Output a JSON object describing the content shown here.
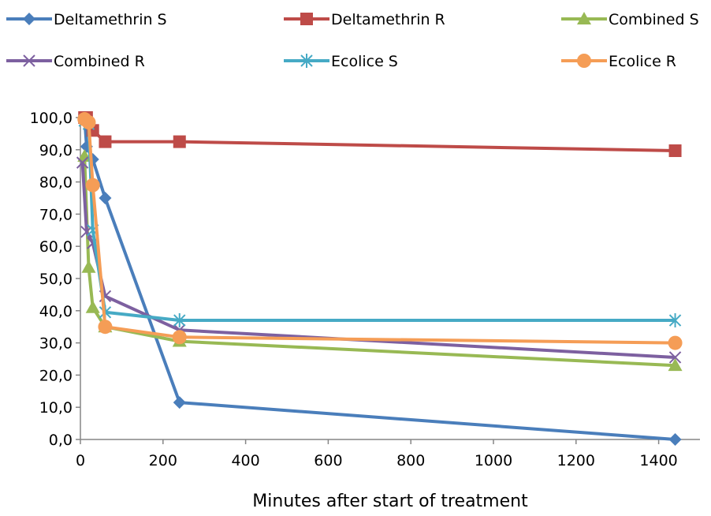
{
  "chart_data": {
    "type": "line",
    "title": "",
    "xlabel": "Minutes after start of treatment",
    "ylabel": "",
    "xlim": [
      0,
      1500
    ],
    "ylim": [
      0,
      100
    ],
    "x_ticks": [
      0,
      200,
      400,
      600,
      800,
      1000,
      1200,
      1400
    ],
    "x_tick_labels": [
      "0",
      "200",
      "400",
      "600",
      "800",
      "1000",
      "1200",
      "1400"
    ],
    "y_ticks": [
      0,
      10,
      20,
      30,
      40,
      50,
      60,
      70,
      80,
      90,
      100
    ],
    "y_tick_labels": [
      "0,0",
      "10,0",
      "20,0",
      "30,0",
      "40,0",
      "50,0",
      "60,0",
      "70,0",
      "80,0",
      "90,0",
      "100,0"
    ],
    "grid": false,
    "legend_position": "top",
    "series": [
      {
        "name": "Deltamethrin S",
        "color": "#4a7ebb",
        "marker": "diamond",
        "points": [
          [
            10,
            100.0
          ],
          [
            15,
            91.0
          ],
          [
            30,
            87.0
          ],
          [
            60,
            75.0
          ],
          [
            240,
            11.5
          ],
          [
            1440,
            0.0
          ]
        ]
      },
      {
        "name": "Deltamethrin R",
        "color": "#be4b48",
        "marker": "square",
        "points": [
          [
            10,
            100.0
          ],
          [
            15,
            100.0
          ],
          [
            30,
            96.0
          ],
          [
            60,
            92.5
          ],
          [
            240,
            92.5
          ],
          [
            1440,
            89.7
          ]
        ]
      },
      {
        "name": "Combined S",
        "color": "#98b954",
        "marker": "triangle",
        "points": [
          [
            10,
            88.0
          ],
          [
            20,
            53.5
          ],
          [
            30,
            41.0
          ],
          [
            60,
            35.0
          ],
          [
            240,
            30.5
          ],
          [
            1440,
            23.0
          ]
        ]
      },
      {
        "name": "Combined R",
        "color": "#7d60a0",
        "marker": "x",
        "points": [
          [
            5,
            86.0
          ],
          [
            15,
            64.5
          ],
          [
            30,
            61.0
          ],
          [
            60,
            44.5
          ],
          [
            240,
            34.0
          ],
          [
            1440,
            25.5
          ]
        ]
      },
      {
        "name": "Ecolice S",
        "color": "#46aac5",
        "marker": "star",
        "points": [
          [
            10,
            99.0
          ],
          [
            20,
            98.0
          ],
          [
            30,
            65.0
          ],
          [
            60,
            39.5
          ],
          [
            240,
            37.0
          ],
          [
            1440,
            37.0
          ]
        ]
      },
      {
        "name": "Ecolice R",
        "color": "#f59d56",
        "marker": "circle",
        "points": [
          [
            10,
            99.5
          ],
          [
            20,
            98.5
          ],
          [
            30,
            79.0
          ],
          [
            60,
            35.0
          ],
          [
            240,
            31.8
          ],
          [
            1440,
            30.0
          ]
        ]
      }
    ]
  }
}
